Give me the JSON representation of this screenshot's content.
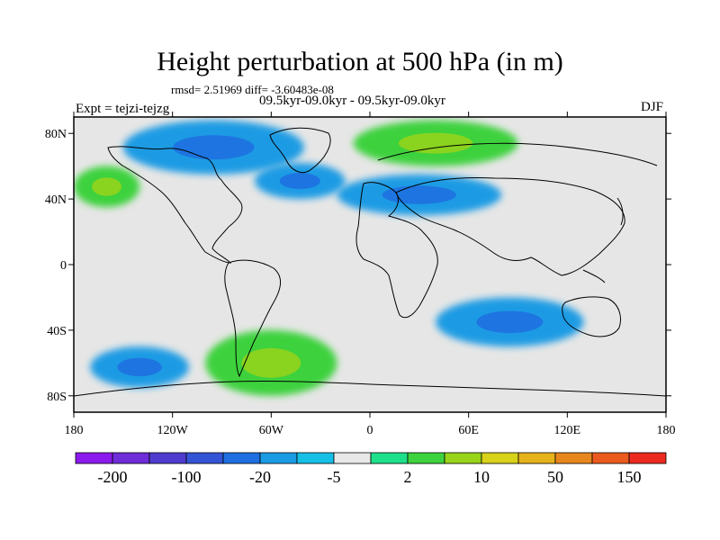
{
  "figure": {
    "title": "Height perturbation at 500 hPa (in m)",
    "stats": "rmsd= 2.51969 diff= -3.60483e-08",
    "subtitle": "09.5kyr-09.0kyr - 09.5kyr-09.0kyr",
    "experiment": "Expt = tejzi-tejzg",
    "season": "DJF"
  },
  "map": {
    "projection": "cylindrical equidistant",
    "lon_range": [
      -180,
      180
    ],
    "lat_range": [
      -90,
      90
    ],
    "x_ticks": [
      {
        "lon": -180,
        "label": "180"
      },
      {
        "lon": -120,
        "label": "120W"
      },
      {
        "lon": -60,
        "label": "60W"
      },
      {
        "lon": 0,
        "label": "0"
      },
      {
        "lon": 60,
        "label": "60E"
      },
      {
        "lon": 120,
        "label": "120E"
      },
      {
        "lon": 180,
        "label": "180"
      }
    ],
    "y_ticks": [
      {
        "lat": 80,
        "label": "80N"
      },
      {
        "lat": 40,
        "label": "40N"
      },
      {
        "lat": 0,
        "label": "0"
      },
      {
        "lat": -40,
        "label": "40S"
      },
      {
        "lat": -80,
        "label": "80S"
      }
    ],
    "anomaly_regions": [
      {
        "name": "arctic-canada-low",
        "lon": [
          -150,
          -40
        ],
        "lat": [
          55,
          88
        ],
        "level": -5
      },
      {
        "name": "north-atlantic-low",
        "lon": [
          -70,
          -15
        ],
        "lat": [
          40,
          62
        ],
        "level": -5
      },
      {
        "name": "north-pacific-high",
        "lon": [
          -180,
          -140
        ],
        "lat": [
          35,
          60
        ],
        "level": 10
      },
      {
        "name": "siberia-high",
        "lon": [
          -10,
          90
        ],
        "lat": [
          60,
          88
        ],
        "level": 10
      },
      {
        "name": "eurasia-low",
        "lon": [
          -20,
          80
        ],
        "lat": [
          30,
          55
        ],
        "level": -5
      },
      {
        "name": "southern-ocean-high",
        "lon": [
          -100,
          -20
        ],
        "lat": [
          -80,
          -40
        ],
        "level": 10
      },
      {
        "name": "south-pacific-low",
        "lon": [
          -170,
          -110
        ],
        "lat": [
          -75,
          -50
        ],
        "level": -5
      },
      {
        "name": "indian-ocean-low",
        "lon": [
          40,
          130
        ],
        "lat": [
          -50,
          -20
        ],
        "level": -5
      }
    ]
  },
  "colorbar": {
    "colors": [
      "#8c1aee",
      "#6f2cd9",
      "#4f3ccf",
      "#3454d6",
      "#1f6fe0",
      "#1b9be4",
      "#15bfe6",
      "#e8e8e8",
      "#1ee08a",
      "#3ed23e",
      "#98d41a",
      "#d8d21a",
      "#e6b21a",
      "#e8861e",
      "#ea5a1e",
      "#ec2a20"
    ],
    "labels": [
      {
        "boundary": 1,
        "text": "-200"
      },
      {
        "boundary": 3,
        "text": "-100"
      },
      {
        "boundary": 5,
        "text": "-20"
      },
      {
        "boundary": 7,
        "text": "-5"
      },
      {
        "boundary": 9,
        "text": "2"
      },
      {
        "boundary": 11,
        "text": "10"
      },
      {
        "boundary": 13,
        "text": "50"
      },
      {
        "boundary": 15,
        "text": "150"
      }
    ]
  }
}
